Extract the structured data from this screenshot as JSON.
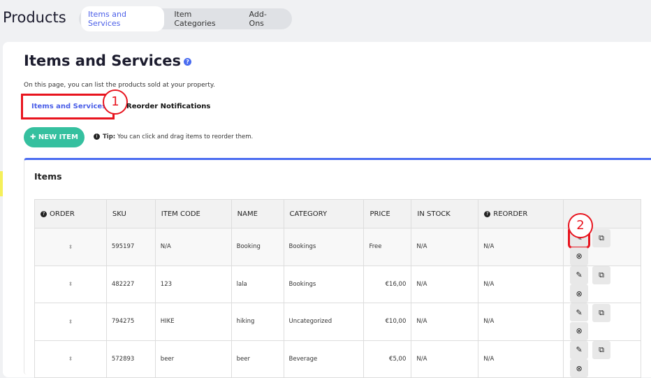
{
  "header": {
    "title": "Products",
    "tabs": [
      {
        "label": "Items and Services",
        "active": true
      },
      {
        "label": "Item Categories"
      },
      {
        "label": "Add-Ons"
      }
    ]
  },
  "page": {
    "title": "Items and Services",
    "help_icon": "question-circle-icon",
    "description": "On this page, you can list the products sold at your property.",
    "subtabs": [
      {
        "label": "Items and Services",
        "active": true
      },
      {
        "label": "Reorder Notifications"
      }
    ],
    "new_item_label": "NEW ITEM",
    "tip_label": "Tip:",
    "tip_text": "You can click and drag items to reorder them."
  },
  "annotations": [
    "1",
    "2"
  ],
  "items": {
    "title": "Items",
    "columns": [
      "ORDER",
      "SKU",
      "ITEM CODE",
      "NAME",
      "CATEGORY",
      "PRICE",
      "IN STOCK",
      "REORDER",
      ""
    ],
    "rows": [
      {
        "sku": "595197",
        "code": "N/A",
        "name": "Booking",
        "category": "Bookings",
        "price": "Free",
        "stock": "N/A",
        "reorder": "N/A"
      },
      {
        "sku": "482227",
        "code": "123",
        "name": "lala",
        "category": "Bookings",
        "price": "€16,00",
        "stock": "N/A",
        "reorder": "N/A"
      },
      {
        "sku": "794275",
        "code": "HIKE",
        "name": "hiking",
        "category": "Uncategorized",
        "price": "€10,00",
        "stock": "N/A",
        "reorder": "N/A"
      },
      {
        "sku": "572893",
        "code": "beer",
        "name": "beer",
        "category": "Beverage",
        "price": "€5,00",
        "stock": "N/A",
        "reorder": "N/A"
      }
    ]
  },
  "colors": {
    "accent": "#4a5ee8",
    "primary_button": "#35c09f",
    "annotation": "#e8141e"
  }
}
